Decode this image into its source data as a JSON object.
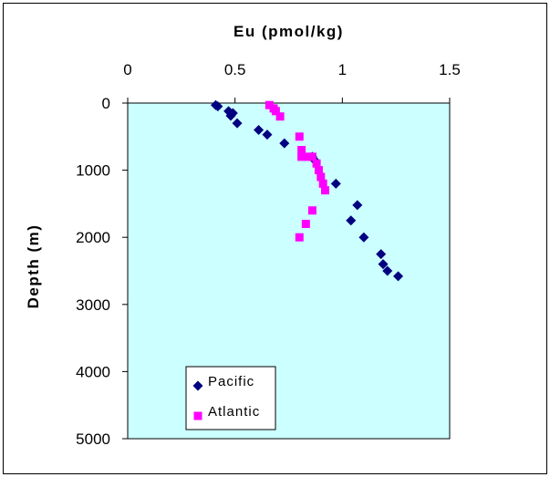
{
  "chart_data": {
    "type": "scatter",
    "title": "",
    "xlabel": "Eu (pmol/kg)",
    "ylabel": "Depth (m)",
    "xlim": [
      0,
      1.5
    ],
    "ylim": [
      5000,
      0
    ],
    "x_axis_position": "top",
    "y_axis_inverted": true,
    "x_ticks": [
      0,
      0.5,
      1,
      1.5
    ],
    "x_tick_labels": [
      "0",
      "0.5",
      "1",
      "1.5"
    ],
    "y_ticks": [
      0,
      1000,
      2000,
      3000,
      4000,
      5000
    ],
    "y_tick_labels": [
      "0",
      "1000",
      "2000",
      "3000",
      "4000",
      "5000"
    ],
    "grid": false,
    "plot_background": "#ccffff",
    "legend": {
      "position": "bottom-left",
      "entries": [
        "Pacific",
        "Atlantic"
      ]
    },
    "series": [
      {
        "name": "Pacific",
        "marker": "diamond",
        "color": "#000080",
        "points": [
          [
            0.41,
            30
          ],
          [
            0.42,
            50
          ],
          [
            0.47,
            120
          ],
          [
            0.49,
            150
          ],
          [
            0.48,
            190
          ],
          [
            0.51,
            300
          ],
          [
            0.61,
            400
          ],
          [
            0.65,
            470
          ],
          [
            0.73,
            600
          ],
          [
            0.86,
            800
          ],
          [
            0.87,
            850
          ],
          [
            0.97,
            1200
          ],
          [
            1.07,
            1520
          ],
          [
            1.04,
            1750
          ],
          [
            1.1,
            2000
          ],
          [
            1.18,
            2250
          ],
          [
            1.19,
            2400
          ],
          [
            1.21,
            2500
          ],
          [
            1.26,
            2580
          ]
        ]
      },
      {
        "name": "Atlantic",
        "marker": "square",
        "color": "#ff00ff",
        "points": [
          [
            0.66,
            30
          ],
          [
            0.68,
            80
          ],
          [
            0.69,
            120
          ],
          [
            0.71,
            200
          ],
          [
            0.8,
            500
          ],
          [
            0.81,
            700
          ],
          [
            0.81,
            800
          ],
          [
            0.84,
            800
          ],
          [
            0.86,
            800
          ],
          [
            0.88,
            900
          ],
          [
            0.89,
            1000
          ],
          [
            0.9,
            1100
          ],
          [
            0.91,
            1200
          ],
          [
            0.92,
            1300
          ],
          [
            0.86,
            1600
          ],
          [
            0.83,
            1800
          ],
          [
            0.8,
            2000
          ]
        ]
      }
    ]
  }
}
